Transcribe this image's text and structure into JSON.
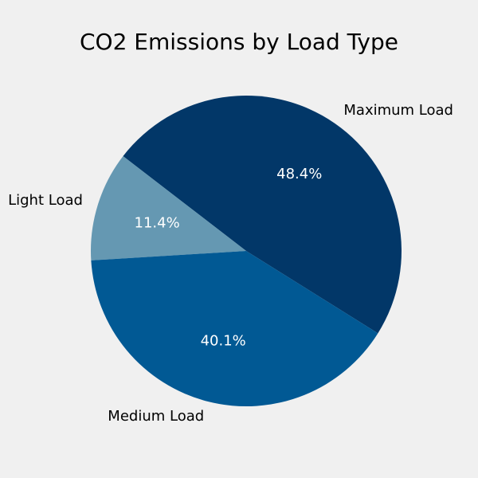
{
  "chart_data": {
    "type": "pie",
    "title": "CO2 Emissions by Load Type",
    "start_angle_deg": 0,
    "direction": "counterclockwise",
    "slices": [
      {
        "label": "Maximum Load",
        "value": 48.4,
        "pct_label": "48.4%",
        "color": "#023768"
      },
      {
        "label": "Light Load",
        "value": 11.4,
        "pct_label": "11.4%",
        "color": "#6598b2"
      },
      {
        "label": "Medium Load",
        "value": 40.1,
        "pct_label": "40.1%",
        "color": "#015994"
      }
    ]
  }
}
